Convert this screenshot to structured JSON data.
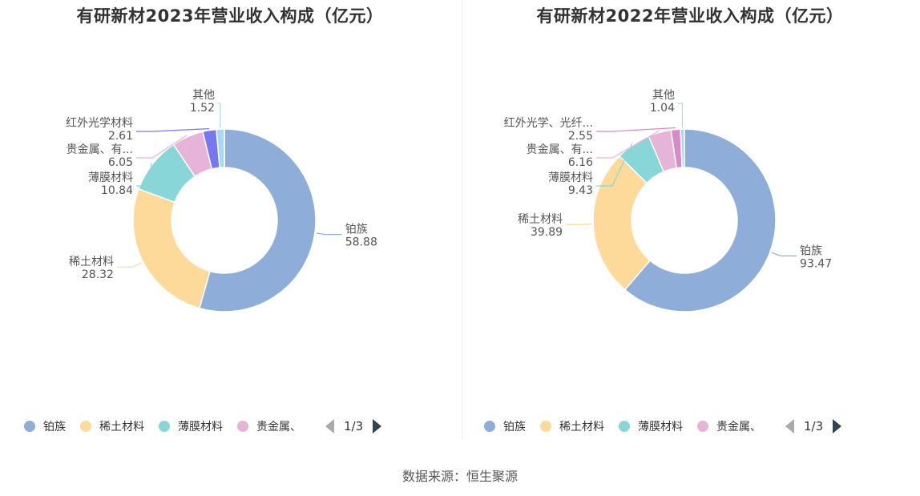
{
  "chart_data": [
    {
      "type": "pie",
      "title": "有研新材2023年营业收入构成（亿元）",
      "categories": [
        "铂族",
        "稀土材料",
        "薄膜材料",
        "贵金属、有...",
        "红外光学材料",
        "其他"
      ],
      "values": [
        58.88,
        28.32,
        10.84,
        6.05,
        2.61,
        1.52
      ],
      "colors": [
        "#8eadd9",
        "#fdd99a",
        "#88d6d8",
        "#e5b4d8",
        "#7778f0",
        "#a9d8f0"
      ],
      "legend": {
        "position": "bottom",
        "items": [
          "铂族",
          "稀土材料",
          "薄膜材料",
          "贵金属、"
        ],
        "page": "1/3"
      }
    },
    {
      "type": "pie",
      "title": "有研新材2022年营业收入构成（亿元）",
      "categories": [
        "铂族",
        "稀土材料",
        "薄膜材料",
        "贵金属、有...",
        "红外光学、光纤...",
        "其他"
      ],
      "values": [
        93.47,
        39.89,
        9.43,
        6.16,
        2.55,
        1.04
      ],
      "colors": [
        "#8eadd9",
        "#fdd99a",
        "#88d6d8",
        "#e5b4d8",
        "#d889c7",
        "#a9d8f0"
      ],
      "legend": {
        "position": "bottom",
        "items": [
          "铂族",
          "稀土材料",
          "薄膜材料",
          "贵金属、"
        ],
        "page": "1/3"
      }
    }
  ],
  "footer": {
    "source": "数据来源：恒生聚源"
  }
}
